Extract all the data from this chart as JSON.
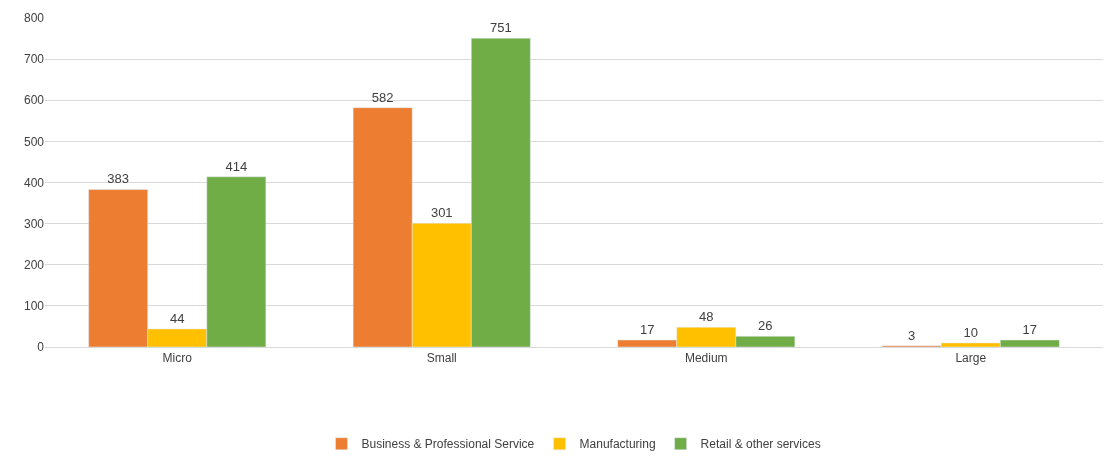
{
  "chart_data": {
    "type": "bar",
    "categories": [
      "Micro",
      "Small",
      "Medium",
      "Large"
    ],
    "series": [
      {
        "name": "Business & Professional Service",
        "color": "#ed7d31",
        "values": [
          383,
          582,
          17,
          3
        ]
      },
      {
        "name": "Manufacturing",
        "color": "#ffc000",
        "values": [
          44,
          301,
          48,
          10
        ]
      },
      {
        "name": "Retail & other services",
        "color": "#70ad47",
        "values": [
          414,
          751,
          26,
          17
        ]
      }
    ],
    "ylim": [
      0,
      800
    ],
    "yticks": [
      0,
      100,
      200,
      300,
      400,
      500,
      600,
      700,
      800
    ],
    "grid": "y",
    "legend": "bottom",
    "data_labels": true
  }
}
